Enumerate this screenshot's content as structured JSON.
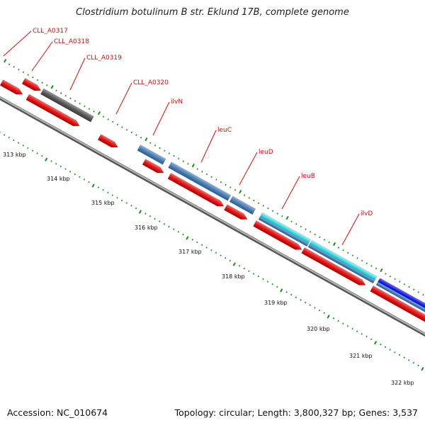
{
  "title": "Clostridium botulinum B str. Eklund 17B, complete genome",
  "footer": {
    "accession": "Accession: NC_010674",
    "summary": "Topology: circular; Length: 3,800,327 bp; Genes: 3,537"
  },
  "colors": {
    "forward_cds": "#e31a1a",
    "gene_gray": "#666666",
    "gene_steelblue": "#4a7fb5",
    "gene_cyan": "#2ad2da",
    "gene_blue": "#1a1ad8",
    "label_red": "#cc1010",
    "tick_green": "#1a8a1a",
    "backbone": "#8a8a8a"
  },
  "scale": {
    "unit": "kbp",
    "labels": [
      "313 kbp",
      "314 kbp",
      "315 kbp",
      "316 kbp",
      "317 kbp",
      "318 kbp",
      "319 kbp",
      "320 kbp",
      "321 kbp",
      "322 kbp"
    ]
  },
  "gene_labels": [
    {
      "name": "CLL_A0317"
    },
    {
      "name": "CLL_A0318"
    },
    {
      "name": "CLL_A0319"
    },
    {
      "name": "CLL_A0320"
    },
    {
      "name": "ilvN"
    },
    {
      "name": "leuC"
    },
    {
      "name": "leuD"
    },
    {
      "name": "leuB"
    },
    {
      "name": "ilvD"
    }
  ]
}
